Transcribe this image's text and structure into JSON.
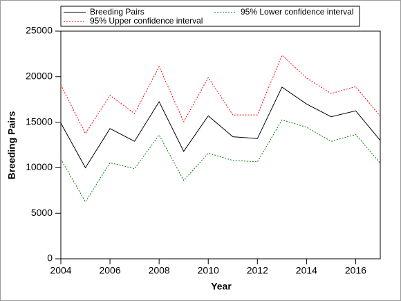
{
  "chart_data": {
    "type": "line",
    "x_label": "Year",
    "y_label": "Breeding Pairs",
    "x": [
      2004,
      2005,
      2006,
      2007,
      2008,
      2009,
      2010,
      2011,
      2012,
      2013,
      2014,
      2015,
      2016,
      2017
    ],
    "series": [
      {
        "name": "Breeding Pairs",
        "color": "#000000",
        "dash": "solid",
        "values": [
          14900,
          10000,
          14300,
          12900,
          17250,
          11800,
          15700,
          13400,
          13200,
          18850,
          17000,
          15600,
          16250,
          13000
        ]
      },
      {
        "name": "95% Lower confidence interval",
        "color": "#008000",
        "dash": "dotted",
        "values": [
          10950,
          6250,
          10550,
          9900,
          13600,
          8600,
          11600,
          10800,
          10650,
          15250,
          14450,
          12900,
          13650,
          10500
        ]
      },
      {
        "name": "95% Upper confidence interval",
        "color": "#ff0000",
        "dash": "dotted",
        "values": [
          19100,
          13750,
          17950,
          15950,
          21100,
          15050,
          19900,
          15800,
          15800,
          22350,
          19850,
          18150,
          18900,
          15650
        ]
      }
    ],
    "xlim": [
      2004,
      2017
    ],
    "xticks": [
      2004,
      2006,
      2008,
      2010,
      2012,
      2014,
      2016
    ],
    "ylim": [
      0,
      25000
    ],
    "yticks": [
      0,
      5000,
      10000,
      15000,
      20000,
      25000
    ],
    "legend": "top"
  }
}
